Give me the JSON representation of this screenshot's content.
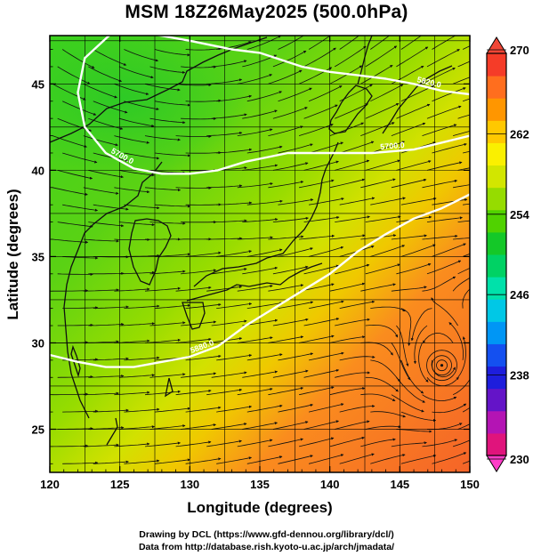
{
  "title": "MSM 18Z26May2025 (500.0hPa)",
  "map": {
    "lon_range": [
      120,
      150
    ],
    "lat_range": [
      22.5,
      47.8
    ],
    "x_ticks": [
      "120",
      "125",
      "130",
      "135",
      "140",
      "145",
      "150"
    ],
    "y_ticks": [
      "25",
      "30",
      "35",
      "40",
      "45"
    ],
    "xlabel": "Longitude (degrees)",
    "ylabel": "Latitude  (degrees)",
    "grid": true,
    "contours": [
      {
        "label": "5820.0",
        "points": [
          [
            126.5,
            48.0
          ],
          [
            130,
            47.5
          ],
          [
            133,
            47.0
          ],
          [
            135,
            46.8
          ],
          [
            138,
            46.0
          ],
          [
            140,
            45.7
          ],
          [
            142,
            45.5
          ],
          [
            144,
            45.3
          ],
          [
            146,
            45.0
          ],
          [
            148,
            44.6
          ],
          [
            150,
            44.4
          ]
        ]
      },
      {
        "label": "5700.0",
        "points": [
          [
            124.5,
            48.0
          ],
          [
            122.5,
            46.5
          ],
          [
            122,
            44.5
          ],
          [
            122.5,
            42.5
          ],
          [
            124,
            41.0
          ],
          [
            126,
            40.1
          ],
          [
            128,
            39.8
          ],
          [
            130,
            39.8
          ],
          [
            132,
            40.0
          ],
          [
            134,
            40.5
          ],
          [
            137,
            41.0
          ],
          [
            140,
            41.0
          ],
          [
            143,
            41.0
          ],
          [
            146,
            41.2
          ],
          [
            148,
            41.6
          ],
          [
            150,
            42.0
          ]
        ]
      },
      {
        "label": "5880.0",
        "points": [
          [
            120,
            29.3
          ],
          [
            122,
            28.9
          ],
          [
            124,
            28.6
          ],
          [
            126,
            28.6
          ],
          [
            128,
            28.9
          ],
          [
            130,
            29.2
          ],
          [
            132,
            29.8
          ],
          [
            134,
            31.0
          ],
          [
            136,
            32.0
          ],
          [
            138,
            33.0
          ],
          [
            140,
            34.0
          ],
          [
            142,
            35.3
          ],
          [
            144,
            36.3
          ],
          [
            146,
            37.2
          ],
          [
            148,
            37.8
          ],
          [
            150,
            38.6
          ]
        ]
      }
    ],
    "cyclone_center": [
      148,
      28.7
    ]
  },
  "colorbar": {
    "min": 230,
    "max": 270,
    "labels": [
      "270",
      "262",
      "254",
      "246",
      "238",
      "230"
    ],
    "colors": [
      "#e0147c",
      "#b414b4",
      "#6414c8",
      "#1e1edc",
      "#1450f0",
      "#0096f5",
      "#00c8e6",
      "#00e1aa",
      "#00d264",
      "#14c828",
      "#50d200",
      "#96dc00",
      "#d2e600",
      "#faf000",
      "#ffc800",
      "#ff9600",
      "#ff6e1e",
      "#f53c28"
    ]
  },
  "footer": {
    "line1": "Drawing by DCL (https://www.gfd-dennou.org/library/dcl/)",
    "line2": "Data from http://database.rish.kyoto-u.ac.jp/arch/jmadata/"
  }
}
